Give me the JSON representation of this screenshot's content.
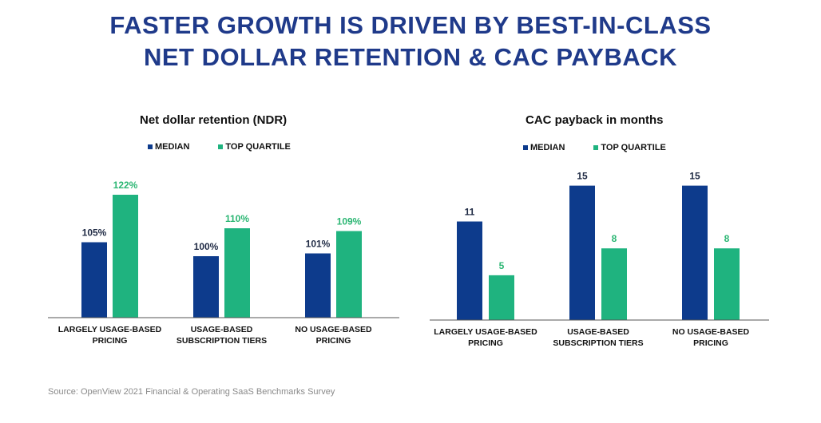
{
  "title": {
    "line1": "FASTER GROWTH IS DRIVEN BY BEST-IN-CLASS",
    "line2": "NET DOLLAR RETENTION & CAC PAYBACK"
  },
  "colors": {
    "median": "#0d3b8c",
    "top_quartile": "#1fb37f",
    "median_label": "#1f2a44",
    "top_label": "#2bb673"
  },
  "source": "Source: OpenView 2021 Financial & Operating SaaS Benchmarks Survey",
  "chart_data": [
    {
      "type": "bar",
      "title": "Net dollar retention (NDR)",
      "legend": [
        "MEDIAN",
        "TOP QUARTILE"
      ],
      "categories": [
        [
          "LARGELY USAGE-BASED",
          "PRICING"
        ],
        [
          "USAGE-BASED",
          "SUBSCRIPTION TIERS"
        ],
        [
          "NO USAGE-BASED",
          "PRICING"
        ]
      ],
      "series": [
        {
          "name": "MEDIAN",
          "values": [
            105,
            100,
            101
          ],
          "labels": [
            "105%",
            "100%",
            "101%"
          ]
        },
        {
          "name": "TOP QUARTILE",
          "values": [
            122,
            110,
            109
          ],
          "labels": [
            "122%",
            "110%",
            "109%"
          ]
        }
      ],
      "ylim": [
        78,
        130
      ]
    },
    {
      "type": "bar",
      "title": "CAC payback in months",
      "legend": [
        "MEDIAN",
        "TOP QUARTILE"
      ],
      "categories": [
        [
          "LARGELY USAGE-BASED",
          "PRICING"
        ],
        [
          "USAGE-BASED",
          "SUBSCRIPTION TIERS"
        ],
        [
          "NO USAGE-BASED",
          "PRICING"
        ]
      ],
      "series": [
        {
          "name": "MEDIAN",
          "values": [
            11,
            15,
            15
          ],
          "labels": [
            "11",
            "15",
            "15"
          ]
        },
        {
          "name": "TOP QUARTILE",
          "values": [
            5,
            8,
            8
          ],
          "labels": [
            "5",
            "8",
            "8"
          ]
        }
      ],
      "ylim": [
        0,
        15.5
      ]
    }
  ]
}
